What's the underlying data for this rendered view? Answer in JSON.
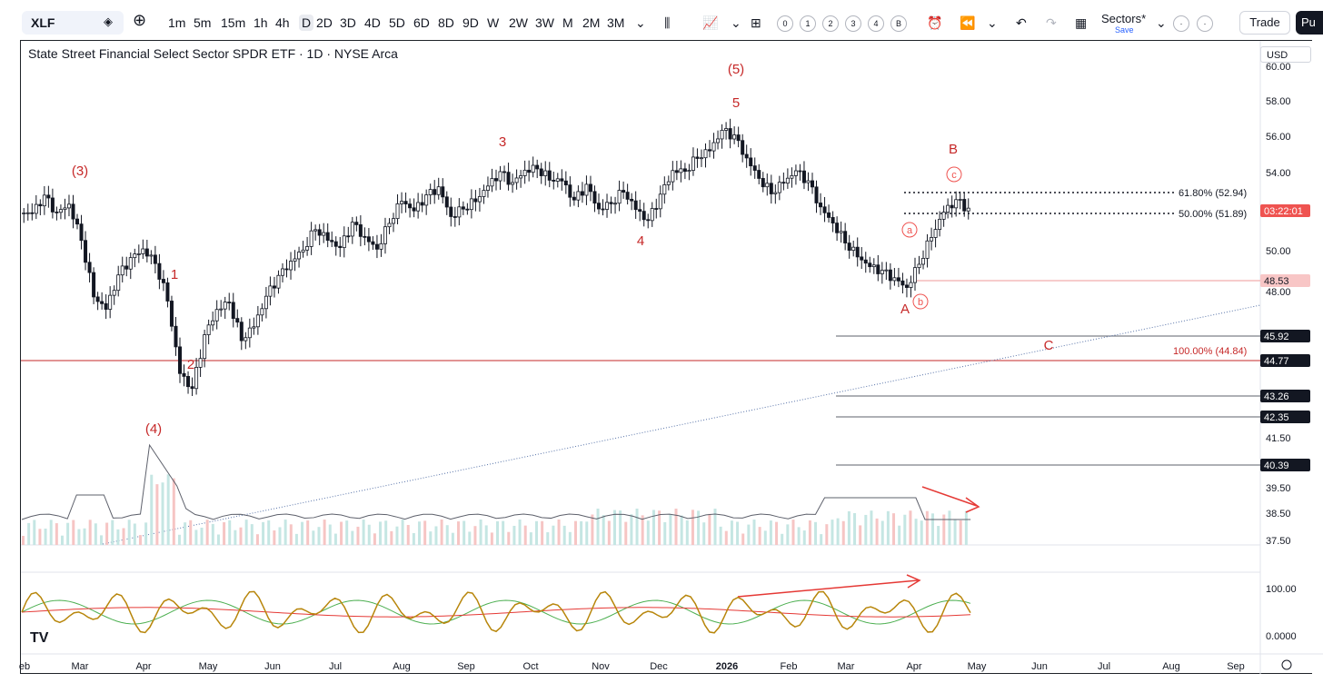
{
  "toolbar": {
    "symbol": "XLF",
    "intervals": [
      "1m",
      "5m",
      "15m",
      "1h",
      "4h",
      "D",
      "2D",
      "3D",
      "4D",
      "5D",
      "6D",
      "8D",
      "9D",
      "W",
      "2W",
      "3W",
      "M",
      "2M",
      "3M"
    ],
    "active_interval": "D",
    "layout_slots": [
      "0",
      "1",
      "2",
      "3",
      "4",
      "B"
    ],
    "layout_name": "Sectors*",
    "layout_save": "Save",
    "trade_label": "Trade",
    "publish_label": "Pu"
  },
  "chart_title": "State Street Financial Select Sector SPDR ETF · 1D · NYSE Arca",
  "currency": "USD",
  "colors": {
    "up": "#26a69a",
    "down": "#ef5350",
    "wave": "#c62828",
    "candle": "#131722",
    "ema_green": "#4caf50",
    "ema_red": "#e53935",
    "osc": "#b8860b",
    "volume_ma": "#5d606b",
    "trend": "#5672a8"
  },
  "chart_data": {
    "type": "candlestick",
    "x_labels": [
      "eb",
      "Mar",
      "Apr",
      "May",
      "Jun",
      "Jul",
      "Aug",
      "Sep",
      "Oct",
      "Nov",
      "Dec",
      "2026",
      "Feb",
      "Mar",
      "Apr",
      "May",
      "Jun",
      "Jul",
      "Aug",
      "Sep"
    ],
    "y_ticks": [
      "60.00",
      "58.00",
      "56.00",
      "54.00",
      "52.00",
      "50.00",
      "48.00",
      "45.92",
      "44.77",
      "43.26",
      "42.35",
      "41.50",
      "40.39",
      "39.50",
      "38.50",
      "37.50"
    ],
    "ylim": [
      37.0,
      60.0
    ],
    "price_path": [
      [
        "Feb",
        52.2
      ],
      [
        "Feb",
        52.9
      ],
      [
        "Feb",
        52.0
      ],
      [
        "Feb",
        52.6
      ],
      [
        "Mar",
        51.0
      ],
      [
        "Mar",
        48.2
      ],
      [
        "Mar",
        47.4
      ],
      [
        "Mar",
        48.9
      ],
      [
        "Mar",
        49.7
      ],
      [
        "Mar",
        50.3
      ],
      [
        "Apr",
        49.8
      ],
      [
        "Apr",
        48.0
      ],
      [
        "Apr",
        44.2
      ],
      [
        "Apr",
        43.2
      ],
      [
        "Apr",
        45.8
      ],
      [
        "Apr",
        47.2
      ],
      [
        "Apr",
        47.8
      ],
      [
        "Apr",
        46.0
      ],
      [
        "Apr",
        46.6
      ],
      [
        "May",
        47.9
      ],
      [
        "May",
        48.8
      ],
      [
        "May",
        49.6
      ],
      [
        "May",
        50.4
      ],
      [
        "May",
        51.6
      ],
      [
        "Jun",
        51.0
      ],
      [
        "Jun",
        50.4
      ],
      [
        "Jun",
        51.5
      ],
      [
        "Jun",
        50.8
      ],
      [
        "Jun",
        50.4
      ],
      [
        "Jul",
        51.9
      ],
      [
        "Jul",
        53.0
      ],
      [
        "Jul",
        52.3
      ],
      [
        "Jul",
        52.9
      ],
      [
        "Jul",
        53.3
      ],
      [
        "Aug",
        52.0
      ],
      [
        "Aug",
        52.6
      ],
      [
        "Aug",
        53.0
      ],
      [
        "Aug",
        53.6
      ],
      [
        "Aug",
        54.1
      ],
      [
        "Sep",
        53.5
      ],
      [
        "Sep",
        54.3
      ],
      [
        "Sep",
        54.6
      ],
      [
        "Sep",
        54.1
      ],
      [
        "Sep",
        53.9
      ],
      [
        "Oct",
        52.7
      ],
      [
        "Oct",
        53.4
      ],
      [
        "Oct",
        52.3
      ],
      [
        "Oct",
        52.8
      ],
      [
        "Oct",
        53.5
      ],
      [
        "Nov",
        52.5
      ],
      [
        "Nov",
        51.7
      ],
      [
        "Nov",
        52.9
      ],
      [
        "Nov",
        54.2
      ],
      [
        "Nov",
        54.4
      ],
      [
        "Dec",
        55.2
      ],
      [
        "Dec",
        55.5
      ],
      [
        "Dec",
        56.3
      ],
      [
        "Dec",
        55.9
      ],
      [
        "2026",
        54.8
      ],
      [
        "2026",
        54.0
      ],
      [
        "2026",
        53.4
      ],
      [
        "2026",
        53.9
      ],
      [
        "2026",
        54.3
      ],
      [
        "Feb",
        53.6
      ],
      [
        "Feb",
        52.3
      ],
      [
        "Feb",
        51.7
      ],
      [
        "Feb",
        50.9
      ],
      [
        "Mar",
        50.2
      ],
      [
        "Mar",
        49.5
      ],
      [
        "Mar",
        49.1
      ],
      [
        "Mar",
        48.7
      ],
      [
        "Apr",
        48.4
      ],
      [
        "Apr",
        49.8
      ],
      [
        "Apr",
        51.2
      ],
      [
        "Apr",
        52.3
      ],
      [
        "Apr",
        52.7
      ],
      [
        "Apr",
        52.2
      ]
    ],
    "wave_labels": [
      {
        "text": "(3)",
        "x": "Feb",
        "y": 54.5
      },
      {
        "text": "1",
        "x": "Apr",
        "y": 48.5
      },
      {
        "text": "2",
        "x": "Apr",
        "y": 44.6
      },
      {
        "text": "(4)",
        "x": "Apr",
        "y": 41.7
      },
      {
        "text": "3",
        "x": "Sep",
        "y": 55.8
      },
      {
        "text": "4",
        "x": "Nov",
        "y": 50.3
      },
      {
        "text": "5",
        "x": "Dec",
        "y": 57.6
      },
      {
        "text": "(5)",
        "x": "Dec",
        "y": 59.6
      },
      {
        "text": "A",
        "x": "Mar",
        "y": 47.5
      },
      {
        "text": "B",
        "x": "Apr",
        "y": 55.4
      },
      {
        "text": "C",
        "x": "Apr",
        "y": 45.0
      }
    ],
    "minor_wave_labels": [
      "a",
      "b",
      "c"
    ],
    "fib_levels": [
      {
        "label": "61.80% (52.94)",
        "value": 52.94
      },
      {
        "label": "50.00% (51.89)",
        "value": 51.89
      },
      {
        "label": "100.00% (44.84)",
        "value": 44.84
      }
    ],
    "horizontal_levels": [
      45.92,
      44.77,
      43.26,
      42.35,
      40.39,
      48.53
    ],
    "price_badges": [
      {
        "text": "03:22:01",
        "value": 51.95,
        "color": "#ef5350"
      },
      {
        "text": "48.53",
        "value": 48.53,
        "color": "#f8c6c6"
      },
      {
        "text": "45.92",
        "value": 45.92,
        "color": "#131722"
      },
      {
        "text": "44.77",
        "value": 44.77,
        "color": "#131722"
      },
      {
        "text": "43.26",
        "value": 43.26,
        "color": "#131722"
      },
      {
        "text": "42.35",
        "value": 42.35,
        "color": "#131722"
      },
      {
        "text": "40.39",
        "value": 40.39,
        "color": "#131722"
      }
    ],
    "indicator_ticks": [
      "100.00",
      "0.0000"
    ],
    "grid": false
  },
  "logo": "TV"
}
